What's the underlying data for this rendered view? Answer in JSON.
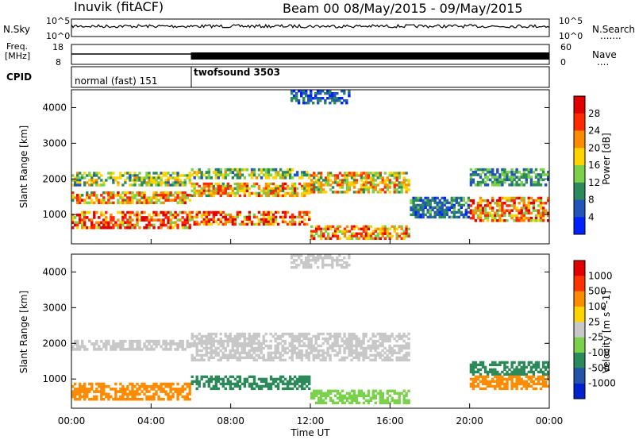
{
  "header": {
    "station": "Inuvik (fitACF)",
    "beam_info": "Beam 00 08/May/2015 - 09/May/2015"
  },
  "noise_panel": {
    "left_label": "N.Sky",
    "left_ticks": [
      "10^5",
      "10^0"
    ],
    "right_ticks": [
      "10^5",
      "10^0"
    ],
    "right_label": "N.Search",
    "right_legend": "......."
  },
  "freq_panel": {
    "left_label_line1": "Freq.",
    "left_label_line2": "[MHz]",
    "left_ticks": [
      "18",
      "8"
    ],
    "right_ticks": [
      "60",
      "0"
    ],
    "right_label": "Nave",
    "right_legend": "...."
  },
  "cpid_panel": {
    "label": "CPID",
    "modes": [
      {
        "name": "normal (fast) 151",
        "start_hour": 0,
        "end_hour": 6
      },
      {
        "name": "twofsound 3503",
        "start_hour": 6,
        "end_hour": 24
      }
    ]
  },
  "x_axis": {
    "label": "Time UT",
    "ticks": [
      "00:00",
      "04:00",
      "08:00",
      "12:00",
      "16:00",
      "20:00",
      "00:00"
    ]
  },
  "chart_data": [
    {
      "type": "heatmap",
      "name": "power",
      "ylabel": "Slant Range [km]",
      "yticks": [
        "1000",
        "2000",
        "3000",
        "4000"
      ],
      "ylim": [
        180,
        4500
      ],
      "xlim": [
        0,
        24
      ],
      "colorbar_label": "Power [dB]",
      "colorbar_ticks": [
        "28",
        "24",
        "20",
        "16",
        "12",
        "8",
        "4"
      ],
      "colorbar_colors": [
        "#0022ff",
        "#2255bb",
        "#2c8a5a",
        "#7bd14c",
        "#ffd400",
        "#ff8c00",
        "#ff2a00",
        "#e00000"
      ],
      "bands": [
        {
          "start": 0,
          "end": 6,
          "range_lo": 600,
          "range_hi": 1100,
          "level": 24
        },
        {
          "start": 0,
          "end": 6,
          "range_lo": 1300,
          "range_hi": 1650,
          "level": 20
        },
        {
          "start": 0,
          "end": 6,
          "range_lo": 1800,
          "range_hi": 2200,
          "level": 14
        },
        {
          "start": 6,
          "end": 12,
          "range_lo": 700,
          "range_hi": 1100,
          "level": 24
        },
        {
          "start": 6,
          "end": 12,
          "range_lo": 1500,
          "range_hi": 1900,
          "level": 20
        },
        {
          "start": 6,
          "end": 12,
          "range_lo": 2000,
          "range_hi": 2300,
          "level": 14
        },
        {
          "start": 12,
          "end": 17,
          "range_lo": 1600,
          "range_hi": 2200,
          "level": 18
        },
        {
          "start": 12,
          "end": 17,
          "range_lo": 300,
          "range_hi": 700,
          "level": 22
        },
        {
          "start": 17,
          "end": 20,
          "range_lo": 900,
          "range_hi": 1500,
          "level": 8
        },
        {
          "start": 20,
          "end": 24,
          "range_lo": 800,
          "range_hi": 1500,
          "level": 22
        },
        {
          "start": 20,
          "end": 24,
          "range_lo": 1800,
          "range_hi": 2300,
          "level": 10
        },
        {
          "start": 11,
          "end": 14,
          "range_lo": 4100,
          "range_hi": 4500,
          "level": 6
        }
      ]
    },
    {
      "type": "heatmap",
      "name": "velocity",
      "ylabel": "Slant Range [km]",
      "yticks": [
        "1000",
        "2000",
        "3000",
        "4000"
      ],
      "ylim": [
        180,
        4500
      ],
      "xlim": [
        0,
        24
      ],
      "colorbar_label": "Velocity [m s^-1]",
      "colorbar_ticks": [
        "1000",
        "500",
        "100",
        "25",
        "-25",
        "-100",
        "-500",
        "-1000"
      ],
      "colorbar_colors": [
        "#0022cc",
        "#2255aa",
        "#2c8a5a",
        "#7bd14c",
        "#c8c8c8",
        "#ffd400",
        "#ff8c00",
        "#ff3300",
        "#e00000"
      ],
      "bands": [
        {
          "start": 0,
          "end": 6,
          "range_lo": 400,
          "range_hi": 900,
          "level": -300
        },
        {
          "start": 0,
          "end": 6,
          "range_lo": 1800,
          "range_hi": 2100,
          "level": 0
        },
        {
          "start": 6,
          "end": 12,
          "range_lo": 700,
          "range_hi": 1100,
          "level": 200
        },
        {
          "start": 6,
          "end": 17,
          "range_lo": 1500,
          "range_hi": 2300,
          "level": 0
        },
        {
          "start": 12,
          "end": 17,
          "range_lo": 300,
          "range_hi": 700,
          "level": 60
        },
        {
          "start": 20,
          "end": 24,
          "range_lo": 1100,
          "range_hi": 1500,
          "level": 200
        },
        {
          "start": 20,
          "end": 24,
          "range_lo": 700,
          "range_hi": 1100,
          "level": -300
        },
        {
          "start": 11,
          "end": 14,
          "range_lo": 4100,
          "range_hi": 4500,
          "level": 0
        }
      ]
    }
  ]
}
